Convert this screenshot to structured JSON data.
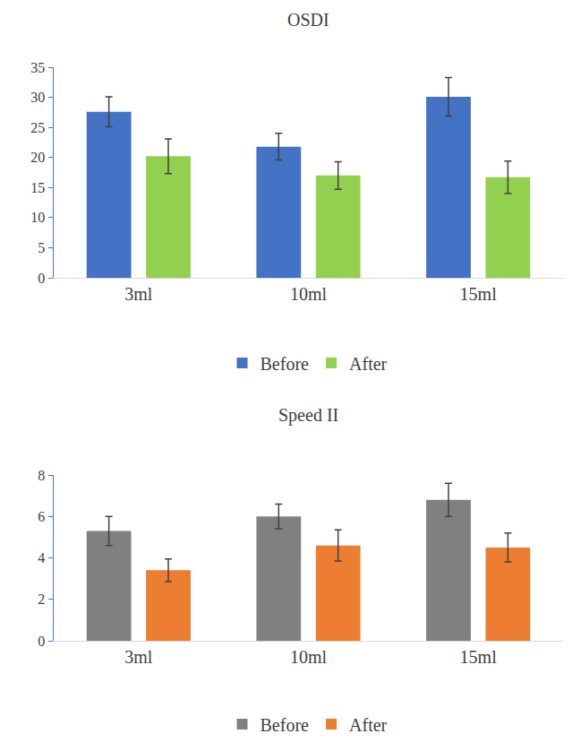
{
  "chart_data": [
    {
      "type": "bar",
      "title": "OSDI",
      "categories": [
        "3ml",
        "10ml",
        "15ml"
      ],
      "series": [
        {
          "name": "Before",
          "color": "#4472c4",
          "values": [
            27.6,
            21.8,
            30.1
          ],
          "errors": [
            2.5,
            2.2,
            3.2
          ]
        },
        {
          "name": "After",
          "color": "#92d050",
          "values": [
            20.2,
            17.0,
            16.7
          ],
          "errors": [
            2.9,
            2.3,
            2.7
          ]
        }
      ],
      "ylim": [
        0,
        35
      ],
      "yticks": [
        0,
        5,
        10,
        15,
        20,
        25,
        30,
        35
      ],
      "grid": false,
      "legend": "bottom"
    },
    {
      "type": "bar",
      "title": "Speed II",
      "categories": [
        "3ml",
        "10ml",
        "15ml"
      ],
      "series": [
        {
          "name": "Before",
          "color": "#808080",
          "values": [
            5.3,
            6.0,
            6.8
          ],
          "errors": [
            0.7,
            0.6,
            0.8
          ]
        },
        {
          "name": "After",
          "color": "#ed7d31",
          "values": [
            3.4,
            4.6,
            4.5
          ],
          "errors": [
            0.55,
            0.75,
            0.7
          ]
        }
      ],
      "ylim": [
        0,
        8
      ],
      "yticks": [
        0,
        2,
        4,
        6,
        8
      ],
      "grid": false,
      "legend": "bottom"
    }
  ]
}
